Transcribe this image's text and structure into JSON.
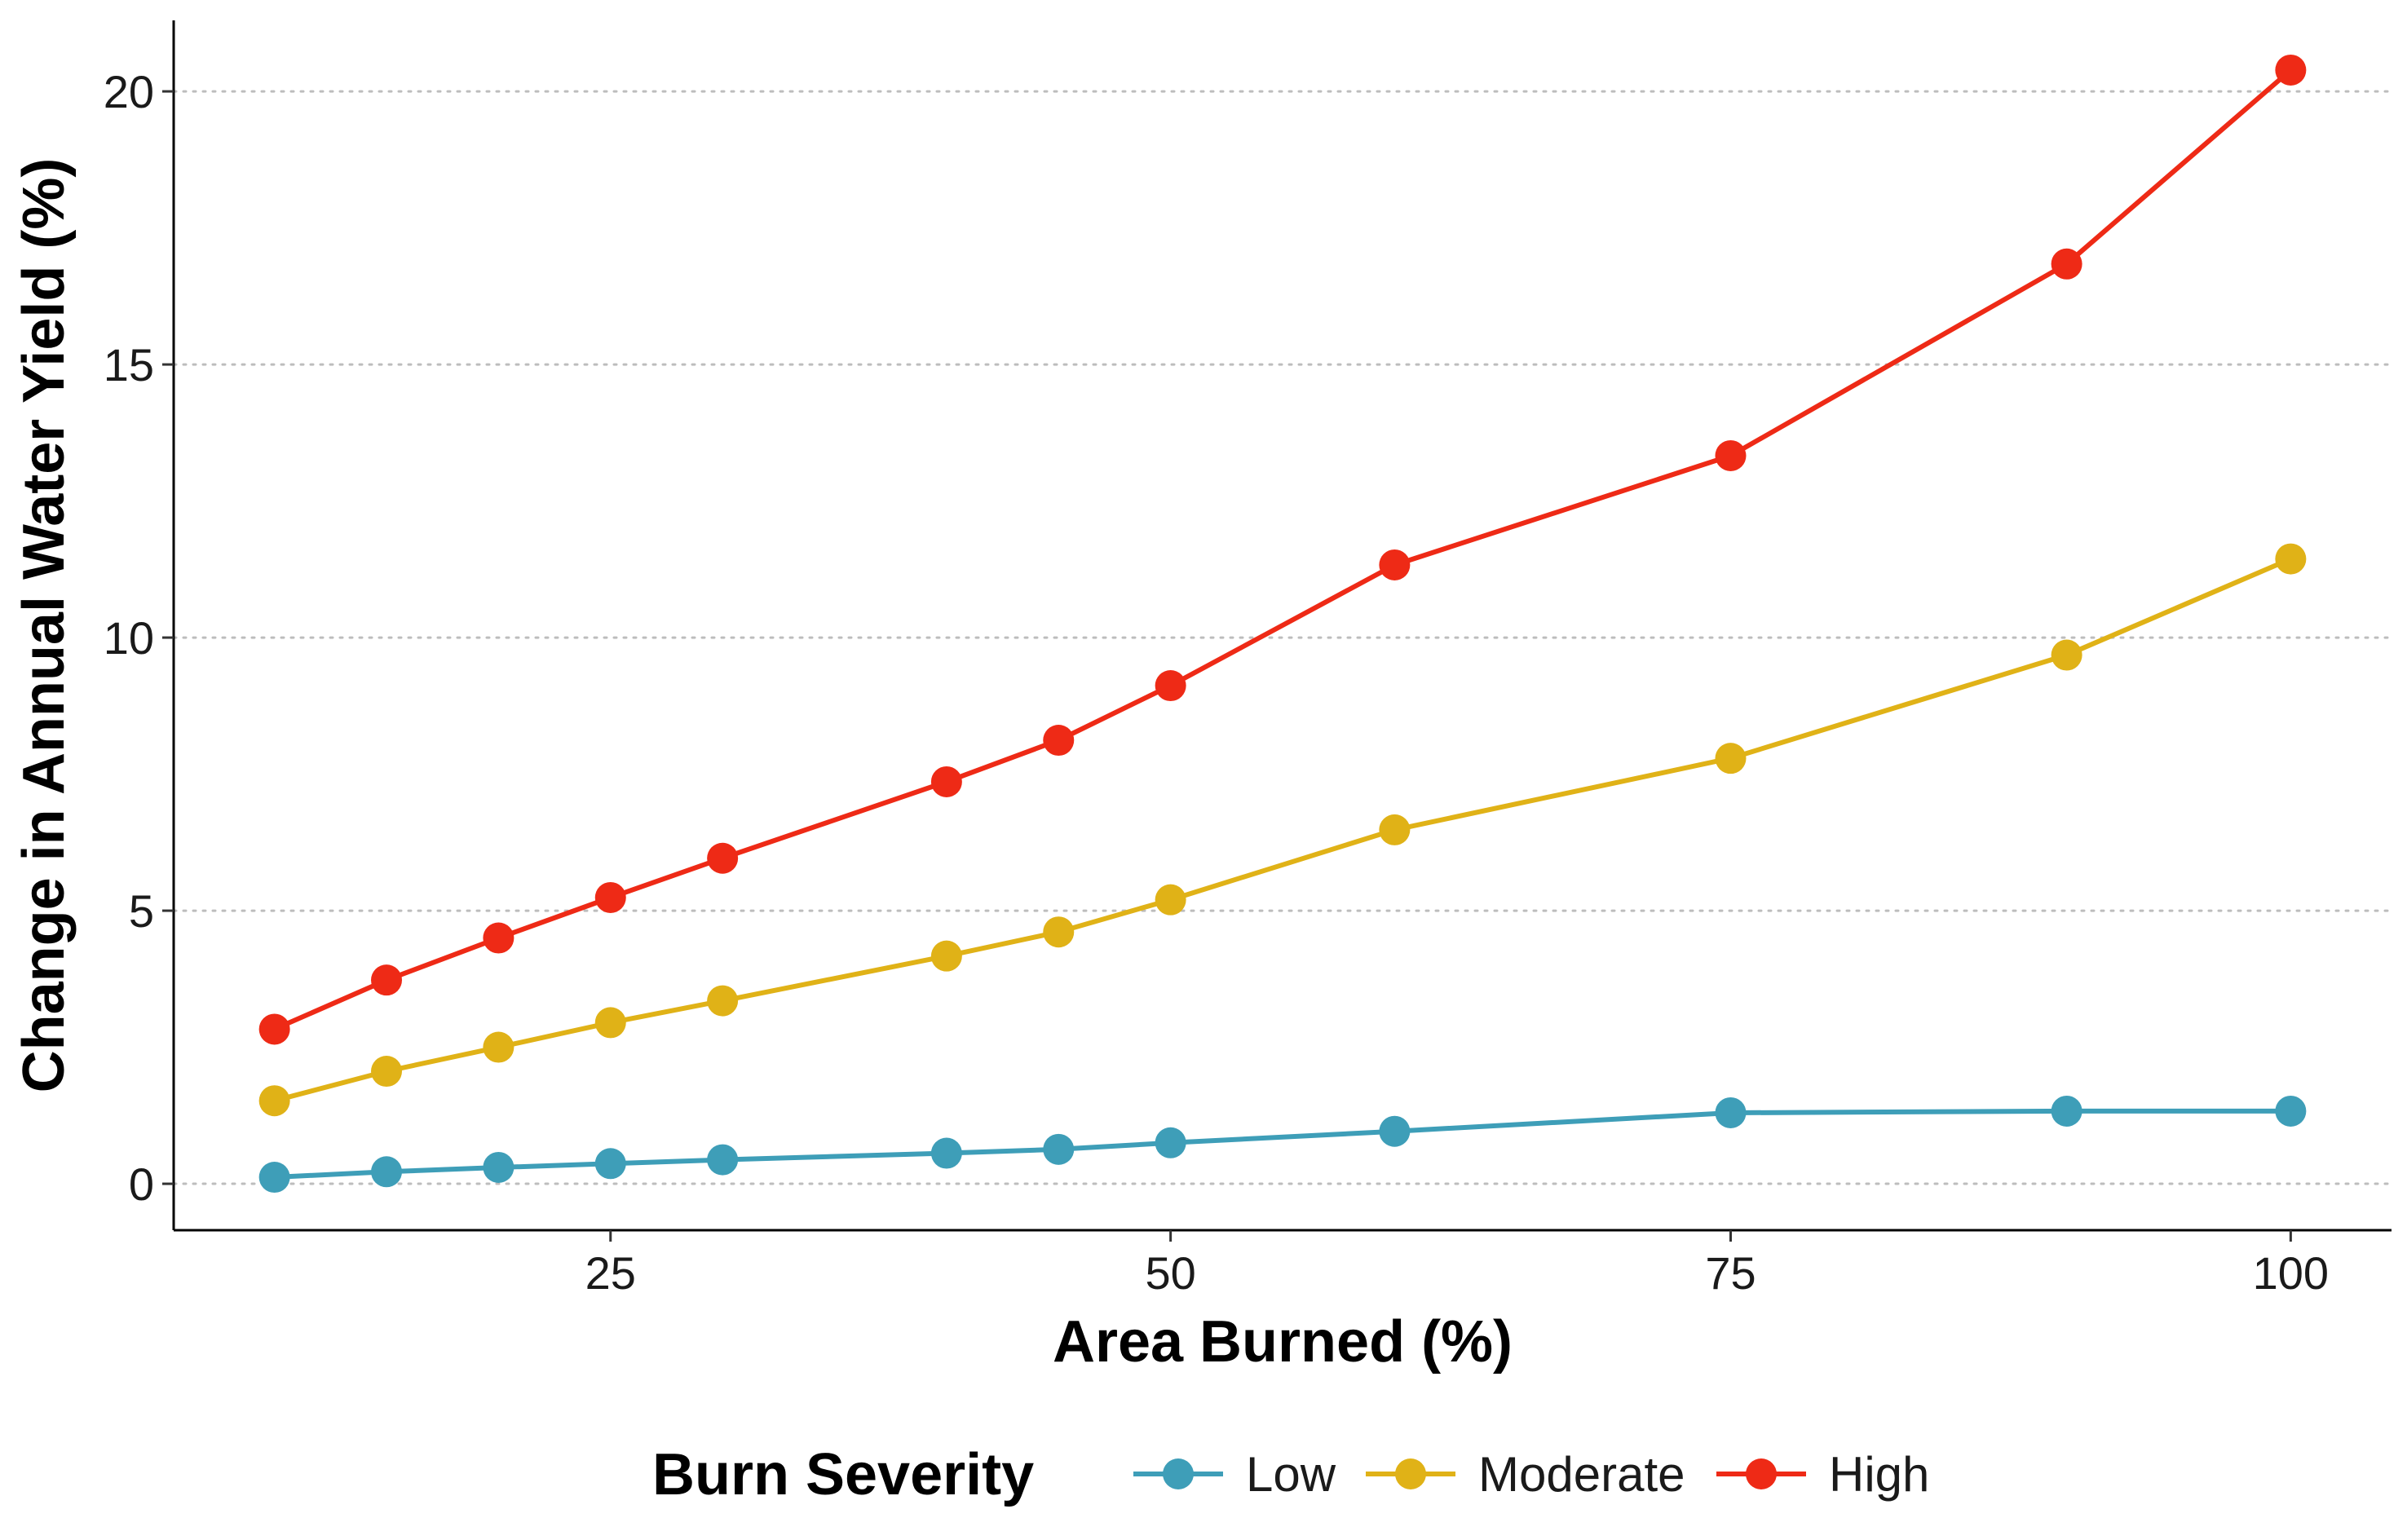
{
  "chart_data": {
    "type": "line",
    "xlabel": "Area Burned (%)",
    "ylabel": "Change in Annual Water Yield (%)",
    "xlim": [
      5.5,
      104.5
    ],
    "ylim": [
      -0.85,
      21.3
    ],
    "x_ticks": [
      25,
      50,
      75,
      100
    ],
    "y_ticks": [
      0,
      5,
      10,
      15,
      20
    ],
    "grid": "horizontal dotted",
    "legend": {
      "title": "Burn Severity",
      "placement": "bottom"
    },
    "x": [
      10,
      15,
      20,
      25,
      30,
      40,
      45,
      50,
      60,
      75,
      90,
      100
    ],
    "series": [
      {
        "name": "Low",
        "color": "#3E9EB8",
        "values": [
          0.12,
          0.22,
          0.3,
          0.37,
          0.44,
          0.56,
          0.63,
          0.75,
          0.96,
          1.3,
          1.33,
          1.33
        ]
      },
      {
        "name": "Moderate",
        "color": "#E0B217",
        "values": [
          1.52,
          2.06,
          2.5,
          2.95,
          3.35,
          4.17,
          4.61,
          5.2,
          6.48,
          7.79,
          9.68,
          11.44
        ]
      },
      {
        "name": "High",
        "color": "#EE2A16",
        "values": [
          2.83,
          3.73,
          4.5,
          5.24,
          5.96,
          7.36,
          8.12,
          9.12,
          11.33,
          13.33,
          16.84,
          20.39
        ]
      }
    ]
  }
}
